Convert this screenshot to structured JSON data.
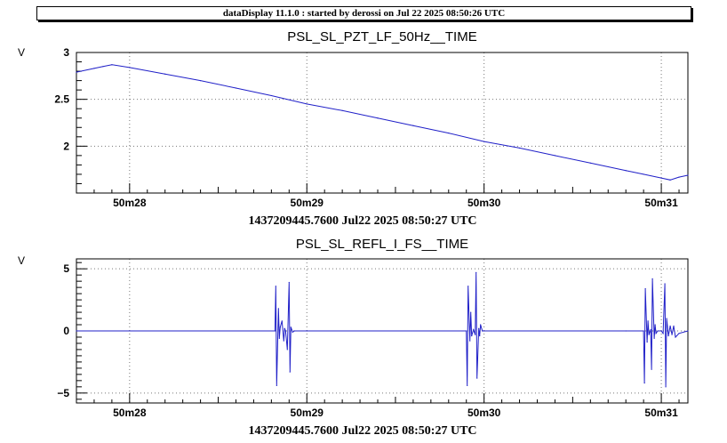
{
  "header": {
    "title": "dataDisplay 11.1.0 : started by derossi on Jul 22 2025 08:50:26 UTC"
  },
  "chart_data": [
    {
      "type": "line",
      "title": "PSL_SL_PZT_LF_50Hz__TIME",
      "ylabel": "V",
      "xlabel": "1437209445.7600 Jul22 2025 08:50:27 UTC",
      "color": "#2020c8",
      "grid": true,
      "xlim": [
        27.7,
        31.15
      ],
      "ylim": [
        1.5,
        3.0
      ],
      "yticks": [
        {
          "v": 2,
          "label": "2"
        },
        {
          "v": 2.5,
          "label": "2.5"
        },
        {
          "v": 3,
          "label": "3"
        }
      ],
      "xticks": [
        {
          "v": 28,
          "label": "50m28"
        },
        {
          "v": 29,
          "label": "50m29"
        },
        {
          "v": 30,
          "label": "50m30"
        },
        {
          "v": 31,
          "label": "50m31"
        }
      ],
      "series": [
        {
          "x": [
            27.7,
            27.8,
            27.85,
            27.9,
            28.0,
            28.2,
            28.4,
            28.6,
            28.8,
            29.0,
            29.2,
            29.4,
            29.6,
            29.8,
            30.0,
            30.2,
            30.4,
            30.6,
            30.8,
            30.9,
            31.0,
            31.05,
            31.1,
            31.15
          ],
          "y": [
            2.79,
            2.83,
            2.85,
            2.87,
            2.84,
            2.77,
            2.7,
            2.62,
            2.54,
            2.45,
            2.38,
            2.3,
            2.22,
            2.14,
            2.05,
            1.98,
            1.9,
            1.82,
            1.74,
            1.7,
            1.66,
            1.64,
            1.67,
            1.69
          ]
        }
      ]
    },
    {
      "type": "line",
      "title": "PSL_SL_REFL_I_FS__TIME",
      "ylabel": "V",
      "xlabel": "1437209445.7600 Jul22 2025 08:50:27 UTC",
      "color": "#2020c8",
      "grid": true,
      "xlim": [
        27.7,
        31.15
      ],
      "ylim": [
        -5.8,
        5.8
      ],
      "yticks": [
        {
          "v": -5,
          "label": "−5"
        },
        {
          "v": 0,
          "label": "0"
        },
        {
          "v": 5,
          "label": "5"
        }
      ],
      "xticks": [
        {
          "v": 28,
          "label": "50m28"
        },
        {
          "v": 29,
          "label": "50m29"
        },
        {
          "v": 30,
          "label": "50m30"
        },
        {
          "v": 31,
          "label": "50m31"
        }
      ],
      "series": [
        {
          "x": [
            27.7,
            28.82,
            28.825,
            28.83,
            28.84,
            28.845,
            28.85,
            28.86,
            28.87,
            28.875,
            28.88,
            28.89,
            28.9,
            28.905,
            28.91,
            28.92,
            28.93,
            29.0,
            29.9,
            29.905,
            29.91,
            29.92,
            29.925,
            29.93,
            29.94,
            29.95,
            29.955,
            29.96,
            29.97,
            29.975,
            29.98,
            29.99,
            30.0,
            30.8,
            30.9,
            30.905,
            30.91,
            30.92,
            30.925,
            30.93,
            30.94,
            30.945,
            30.95,
            30.96,
            30.965,
            30.97,
            30.98,
            31.0,
            31.01,
            31.02,
            31.025,
            31.03,
            31.04,
            31.05,
            31.06,
            31.07,
            31.08,
            31.1,
            31.15
          ],
          "y": [
            0,
            0,
            3.6,
            -4.4,
            1.8,
            -0.6,
            0.3,
            0.8,
            -0.8,
            0.2,
            0,
            -1.5,
            3.9,
            -3.3,
            0.3,
            -0.1,
            0,
            0,
            0,
            -4.4,
            3.6,
            -0.8,
            1.5,
            -0.4,
            0.1,
            -0.3,
            4.7,
            -3.8,
            0.2,
            -0.4,
            0.5,
            0,
            0,
            0,
            0,
            -4.2,
            3.4,
            -0.9,
            0.8,
            -0.3,
            0.1,
            -3.1,
            4.2,
            -0.6,
            0.5,
            -0.2,
            0,
            0,
            -0.2,
            3.8,
            -4.5,
            1.0,
            -0.4,
            0.4,
            -0.3,
            0.4,
            -0.5,
            -0.2,
            0
          ]
        }
      ]
    }
  ]
}
